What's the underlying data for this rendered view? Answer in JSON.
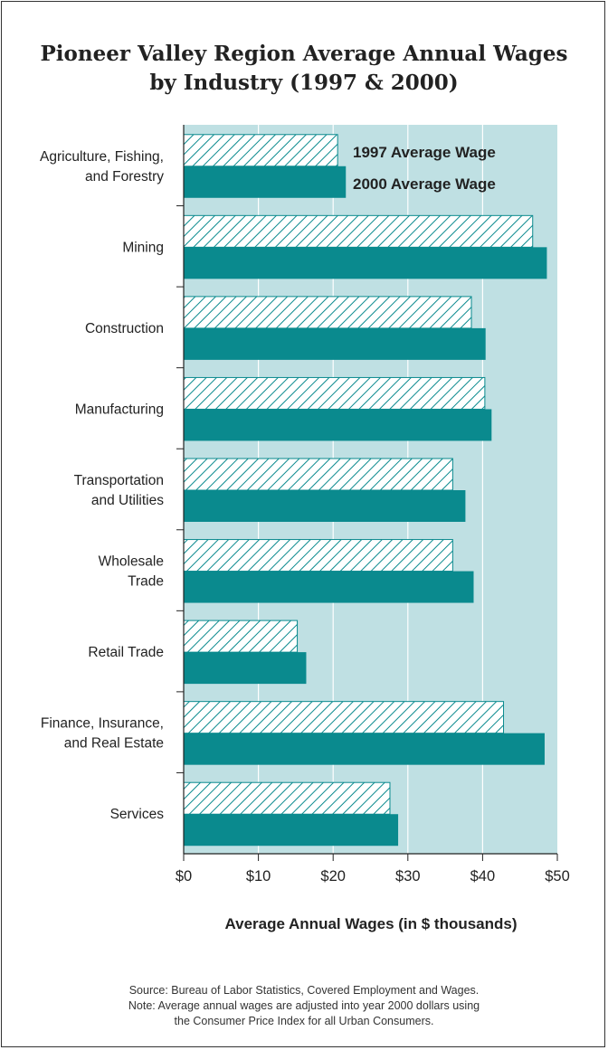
{
  "title_line1": "Pioneer Valley Region Average Annual Wages",
  "title_line2": "by Industry (1997 & 2000)",
  "footer": {
    "source": "Source: Bureau of Labor Statistics, Covered Employment and Wages.",
    "note_line1": "Note: Average annual wages are adjusted into year 2000 dollars using",
    "note_line2": "the Consumer Price Index for all Urban Consumers."
  },
  "colors": {
    "background": "#bfe0e3",
    "bar_2000": "#0a8a8e",
    "hatch_1997": "#0a8a8e",
    "gridline": "#ffffff"
  },
  "chart_data": {
    "type": "bar",
    "orientation": "horizontal",
    "categories": [
      [
        "Agriculture, Fishing,",
        "and Forestry"
      ],
      [
        "Mining"
      ],
      [
        "Construction"
      ],
      [
        "Manufacturing"
      ],
      [
        "Transportation",
        "and Utilities"
      ],
      [
        "Wholesale",
        "Trade"
      ],
      [
        "Retail Trade"
      ],
      [
        "Finance, Insurance,",
        "and Real Estate"
      ],
      [
        "Services"
      ]
    ],
    "series": [
      {
        "name": "1997 Average Wage",
        "style": "hatched",
        "values": [
          20.6,
          46.7,
          38.5,
          40.3,
          36.0,
          36.0,
          15.2,
          42.8,
          27.6
        ]
      },
      {
        "name": "2000 Average Wage",
        "style": "solid",
        "values": [
          21.7,
          48.6,
          40.4,
          41.2,
          37.7,
          38.8,
          16.4,
          48.3,
          28.7
        ]
      }
    ],
    "xlim": [
      0,
      50
    ],
    "xticks": [
      0,
      10,
      20,
      30,
      40,
      50
    ],
    "xtick_labels": [
      "$0",
      "$10",
      "$20",
      "$30",
      "$40",
      "$50"
    ],
    "xlabel": "Average Annual Wages (in $ thousands)",
    "ylabel": "",
    "grid": true,
    "legend_position": "top-right, inside plot"
  }
}
